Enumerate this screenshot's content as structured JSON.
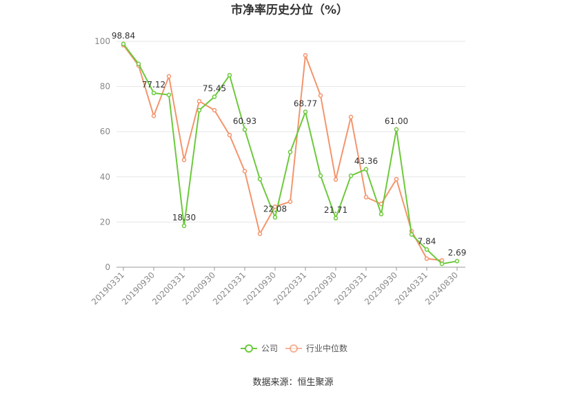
{
  "chart_data": {
    "type": "line",
    "title": "市净率历史分位（%）",
    "xlabel": "",
    "ylabel": "",
    "ylim": [
      0,
      100
    ],
    "yticks": [
      0,
      20,
      40,
      60,
      80,
      100
    ],
    "grid": true,
    "legend_position": "bottom",
    "x": [
      "20190331",
      "20190630",
      "20190930",
      "20191231",
      "20200331",
      "20200630",
      "20200930",
      "20201231",
      "20210331",
      "20210630",
      "20210930",
      "20211231",
      "20220331",
      "20220630",
      "20220930",
      "20221231",
      "20230331",
      "20230630",
      "20230930",
      "20231231",
      "20240331",
      "20240630",
      "20240830"
    ],
    "x_tick_labels": [
      "20190331",
      "20190930",
      "20200331",
      "20200930",
      "20210331",
      "20210930",
      "20220331",
      "20220930",
      "20230331",
      "20230930",
      "20240331",
      "20240830"
    ],
    "series": [
      {
        "name": "公司",
        "color": "#6bc93a",
        "values": [
          98.84,
          90.0,
          77.12,
          76.3,
          18.3,
          69.5,
          75.45,
          85.0,
          60.93,
          39.0,
          22.08,
          51.0,
          68.77,
          40.5,
          21.71,
          40.5,
          43.36,
          23.5,
          61.0,
          14.5,
          7.84,
          1.5,
          2.69
        ],
        "labels": {
          "0": "98.84",
          "2": "77.12",
          "4": "18.30",
          "6": "75.45",
          "8": "60.93",
          "10": "22.08",
          "12": "68.77",
          "14": "21.71",
          "16": "43.36",
          "18": "61.00",
          "20": "7.84",
          "22": "2.69"
        }
      },
      {
        "name": "行业中位数",
        "color": "#f4946b",
        "values": [
          98.3,
          89.3,
          67.0,
          84.5,
          47.5,
          73.5,
          69.5,
          58.5,
          42.5,
          14.8,
          26.8,
          29.0,
          93.8,
          76.0,
          38.8,
          66.5,
          31.0,
          28.0,
          39.0,
          16.0,
          3.8,
          3.0,
          null
        ]
      }
    ]
  },
  "footer": {
    "source": "数据来源：恒生聚源"
  }
}
